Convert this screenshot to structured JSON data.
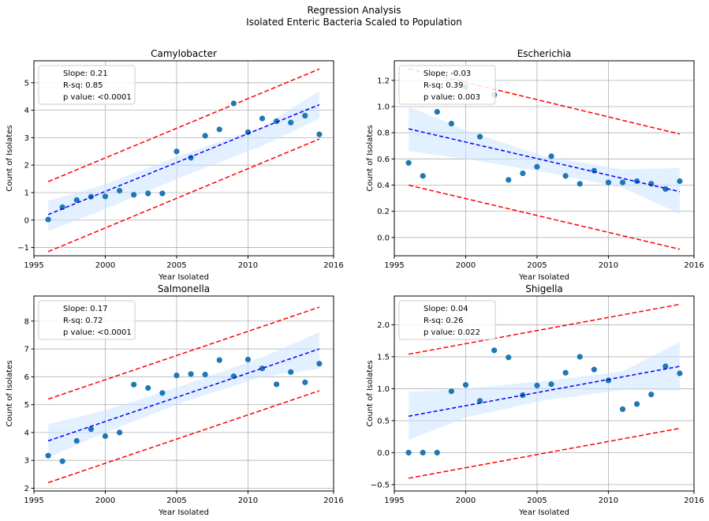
{
  "figure": {
    "suptitle_line1": "Regression Analysis",
    "suptitle_line2": "Isolated Enteric Bacteria Scaled to Population"
  },
  "colors": {
    "points": "#1f77b4",
    "fit_line": "#0000ff",
    "prediction_band": "#ff0000",
    "confidence_band": "#cce3ff",
    "grid": "#b0b0b0"
  },
  "chart_data": [
    {
      "type": "scatter",
      "title": "Camylobacter",
      "xlabel": "Year Isolated",
      "ylabel": "Count of Isolates",
      "xlim": [
        1995,
        2016
      ],
      "ylim": [
        -1.3,
        5.8
      ],
      "xticks": [
        1995,
        2000,
        2005,
        2010,
        2016
      ],
      "yticks": [
        -1,
        0,
        1,
        2,
        3,
        4,
        5
      ],
      "grid": true,
      "legend": {
        "placement": "upper-left",
        "lines": [
          "Slope: 0.21",
          "R-sq: 0.85",
          "p value: <0.0001"
        ]
      },
      "x": [
        1996,
        1997,
        1998,
        1999,
        2000,
        2001,
        2002,
        2003,
        2004,
        2005,
        2006,
        2007,
        2008,
        2009,
        2010,
        2011,
        2012,
        2013,
        2014,
        2015
      ],
      "y": [
        0.02,
        0.47,
        0.73,
        0.85,
        0.86,
        1.07,
        0.92,
        0.97,
        0.97,
        2.5,
        2.27,
        3.07,
        3.3,
        4.25,
        3.2,
        3.7,
        3.6,
        3.55,
        3.8,
        3.12
      ],
      "fit": {
        "x": [
          1996,
          2015
        ],
        "y": [
          0.2,
          4.2
        ]
      },
      "confidence_band": {
        "x": [
          1996,
          2000,
          2005.5,
          2011,
          2015
        ],
        "lower": [
          -0.4,
          0.4,
          1.6,
          2.7,
          3.7
        ],
        "upper": [
          0.7,
          1.3,
          2.4,
          3.4,
          4.7
        ]
      },
      "prediction_band": {
        "x": [
          1996,
          2015
        ],
        "lower": [
          -1.15,
          2.95
        ],
        "upper": [
          1.4,
          5.5
        ]
      }
    },
    {
      "type": "scatter",
      "title": "Escherichia",
      "xlabel": "Year Isolated",
      "ylabel": "Count of Isolates",
      "xlim": [
        1995,
        2016
      ],
      "ylim": [
        -0.14,
        1.35
      ],
      "xticks": [
        1995,
        2000,
        2005,
        2010,
        2016
      ],
      "yticks": [
        0.0,
        0.2,
        0.4,
        0.6,
        0.8,
        1.0,
        1.2
      ],
      "grid": true,
      "legend": {
        "placement": "upper-left",
        "lines": [
          "Slope: -0.03",
          "R-sq: 0.39",
          "p value: 0.003"
        ]
      },
      "x": [
        1996,
        1997,
        1998,
        1999,
        2000,
        2001,
        2002,
        2003,
        2004,
        2005,
        2006,
        2007,
        2008,
        2009,
        2010,
        2011,
        2012,
        2013,
        2014,
        2015
      ],
      "y": [
        0.57,
        0.47,
        0.96,
        0.87,
        1.15,
        0.77,
        1.09,
        0.44,
        0.49,
        0.54,
        0.62,
        0.47,
        0.41,
        0.51,
        0.42,
        0.42,
        0.43,
        0.41,
        0.37,
        0.43
      ],
      "fit": {
        "x": [
          1996,
          2015
        ],
        "y": [
          0.83,
          0.35
        ]
      },
      "confidence_band": {
        "x": [
          1996,
          2000,
          2005.5,
          2011,
          2015
        ],
        "lower": [
          0.66,
          0.6,
          0.5,
          0.38,
          0.18
        ],
        "upper": [
          1.0,
          0.82,
          0.62,
          0.52,
          0.53
        ]
      },
      "prediction_band": {
        "x": [
          1996,
          2015
        ],
        "lower": [
          0.4,
          -0.09
        ],
        "upper": [
          1.29,
          0.79
        ]
      }
    },
    {
      "type": "scatter",
      "title": "Salmonella",
      "xlabel": "Year Isolated",
      "ylabel": "Count of Isolates",
      "xlim": [
        1995,
        2016
      ],
      "ylim": [
        1.9,
        8.9
      ],
      "xticks": [
        1995,
        2000,
        2005,
        2010,
        2016
      ],
      "yticks": [
        2,
        3,
        4,
        5,
        6,
        7,
        8
      ],
      "grid": true,
      "legend": {
        "placement": "upper-left",
        "lines": [
          "Slope: 0.17",
          "R-sq: 0.72",
          "p value: <0.0001"
        ]
      },
      "x": [
        1996,
        1997,
        1998,
        1999,
        2000,
        2001,
        2002,
        2003,
        2004,
        2005,
        2006,
        2007,
        2008,
        2009,
        2010,
        2011,
        2012,
        2013,
        2014,
        2015
      ],
      "y": [
        3.17,
        2.97,
        3.7,
        4.12,
        3.87,
        4.0,
        5.72,
        5.6,
        5.42,
        6.05,
        6.1,
        6.08,
        6.6,
        6.02,
        6.62,
        6.3,
        5.73,
        6.17,
        5.8,
        6.47
      ],
      "fit": {
        "x": [
          1996,
          2015
        ],
        "y": [
          3.7,
          7.0
        ]
      },
      "confidence_band": {
        "x": [
          1996,
          2000,
          2005.5,
          2011,
          2015
        ],
        "lower": [
          3.1,
          4.0,
          5.1,
          6.0,
          6.3
        ],
        "upper": [
          4.3,
          4.8,
          5.7,
          6.7,
          7.6
        ]
      },
      "prediction_band": {
        "x": [
          1996,
          2015
        ],
        "lower": [
          2.2,
          5.5
        ],
        "upper": [
          5.2,
          8.5
        ]
      }
    },
    {
      "type": "scatter",
      "title": "Shigella",
      "xlabel": "Year Isolated",
      "ylabel": "Count of Isolates",
      "xlim": [
        1995,
        2016
      ],
      "ylim": [
        -0.6,
        2.45
      ],
      "xticks": [
        1995,
        2000,
        2005,
        2010,
        2016
      ],
      "yticks": [
        -0.5,
        0.0,
        0.5,
        1.0,
        1.5,
        2.0
      ],
      "grid": true,
      "legend": {
        "placement": "upper-left",
        "lines": [
          "Slope: 0.04",
          "R-sq: 0.26",
          "p value: 0.022"
        ]
      },
      "x": [
        1996,
        1997,
        1998,
        1999,
        2000,
        2001,
        2002,
        2003,
        2004,
        2005,
        2006,
        2007,
        2008,
        2009,
        2010,
        2011,
        2012,
        2013,
        2014,
        2015
      ],
      "y": [
        0.0,
        0.0,
        0.0,
        0.96,
        1.06,
        0.81,
        1.6,
        1.49,
        0.9,
        1.05,
        1.07,
        1.25,
        1.5,
        1.3,
        1.13,
        0.68,
        0.76,
        0.91,
        1.35,
        1.24
      ],
      "fit": {
        "x": [
          1996,
          2015
        ],
        "y": [
          0.57,
          1.35
        ]
      },
      "confidence_band": {
        "x": [
          1996,
          2000,
          2005.5,
          2011,
          2015
        ],
        "lower": [
          0.2,
          0.55,
          0.82,
          0.98,
          0.97
        ],
        "upper": [
          0.95,
          1.0,
          1.12,
          1.27,
          1.73
        ]
      },
      "prediction_band": {
        "x": [
          1996,
          2015
        ],
        "lower": [
          -0.4,
          0.38
        ],
        "upper": [
          1.54,
          2.32
        ]
      }
    }
  ]
}
